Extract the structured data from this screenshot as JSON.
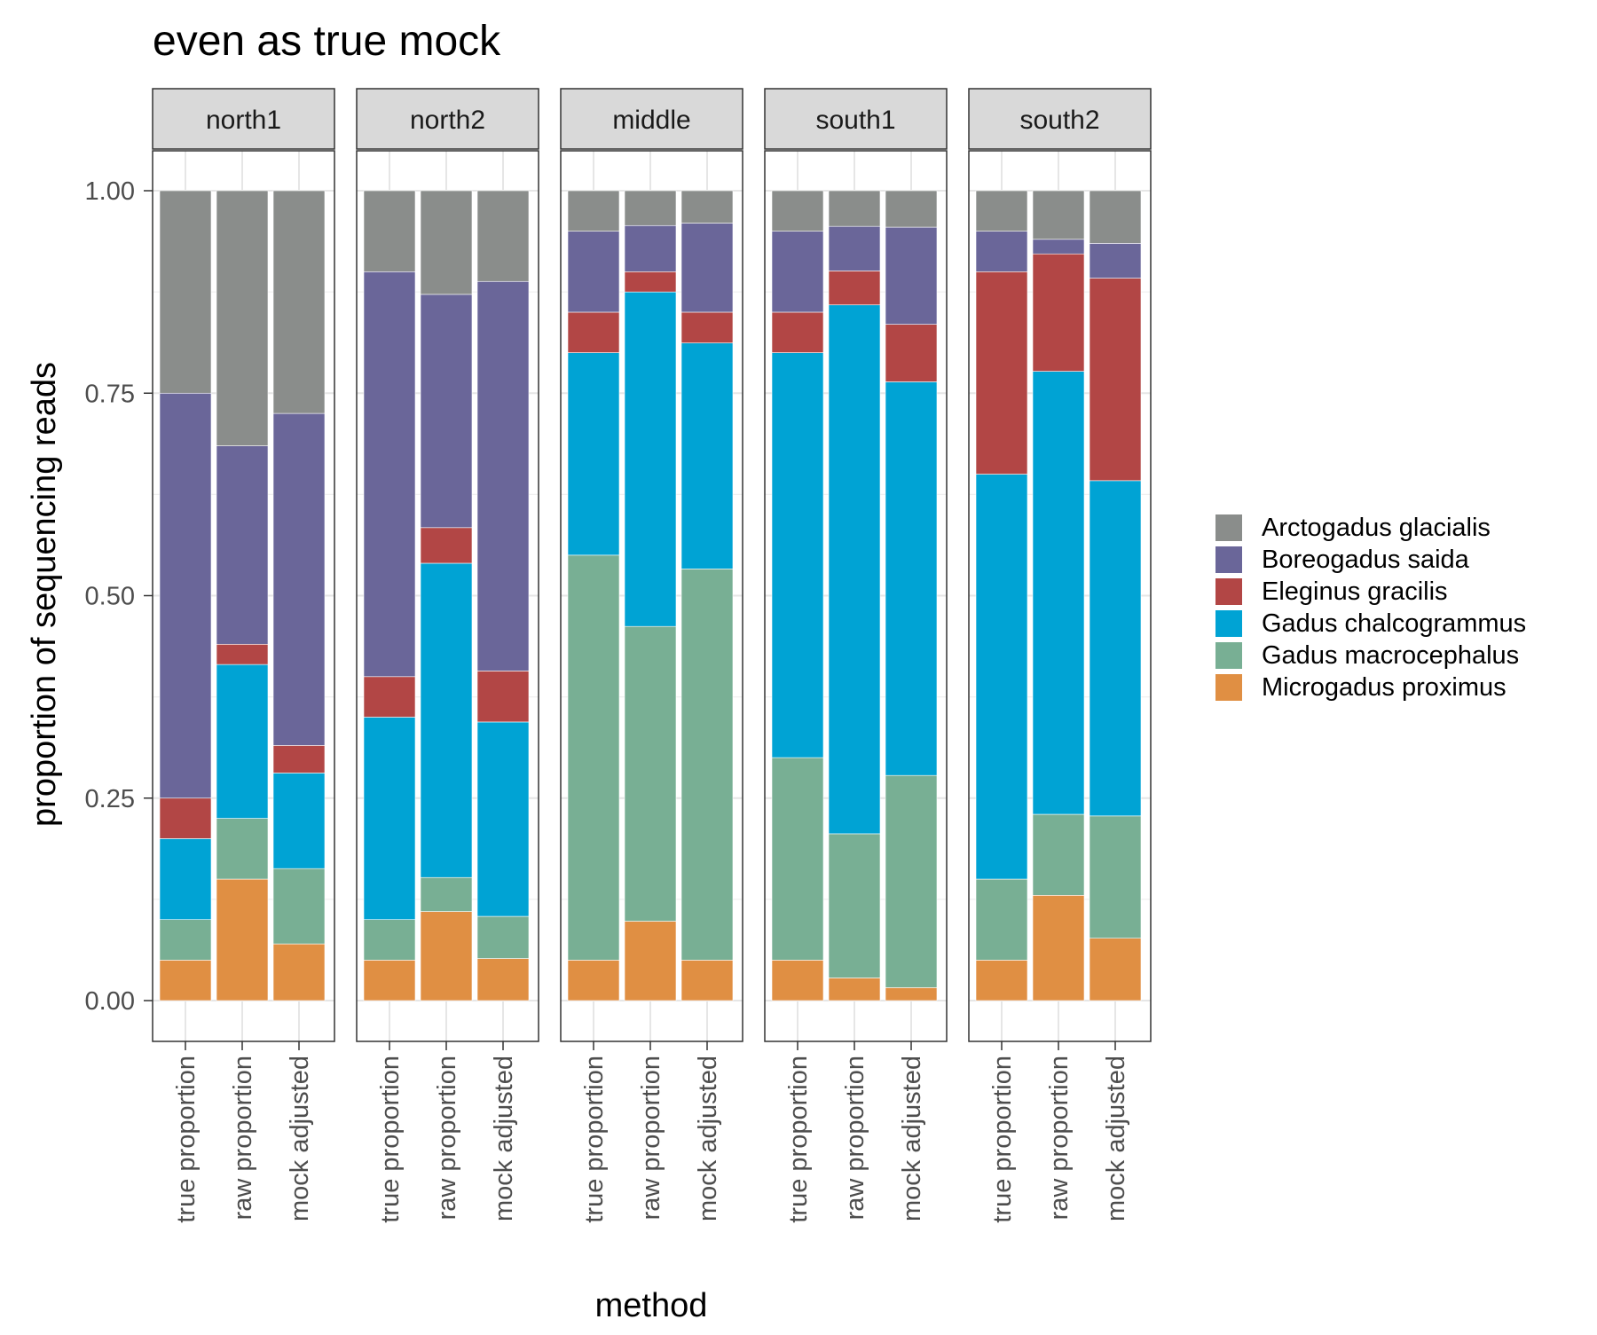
{
  "chart_data": {
    "type": "bar",
    "stacked": true,
    "faceted": true,
    "title": "even as true mock",
    "xlabel": "method",
    "ylabel": "proportion of sequencing reads",
    "ylim": [
      0,
      1
    ],
    "y_ticks": [
      "0.00",
      "0.25",
      "0.50",
      "0.75",
      "1.00"
    ],
    "categories": [
      "true proportion",
      "raw proportion",
      "mock adjusted"
    ],
    "legend_position": "right",
    "grid": true,
    "species": [
      {
        "name": "Arctogadus glacialis",
        "color": "#8a8d8b"
      },
      {
        "name": "Boreogadus saida",
        "color": "#6a6699"
      },
      {
        "name": "Eleginus gracilis",
        "color": "#b24645"
      },
      {
        "name": "Gadus chalcogrammus",
        "color": "#00a3d4"
      },
      {
        "name": "Gadus macrocephalus",
        "color": "#78af94"
      },
      {
        "name": "Microgadus proximus",
        "color": "#e08f43"
      }
    ],
    "stack_order_bottom_to_top": [
      "Microgadus proximus",
      "Gadus macrocephalus",
      "Gadus chalcogrammus",
      "Eleginus gracilis",
      "Boreogadus saida",
      "Arctogadus glacialis"
    ],
    "facets": [
      {
        "name": "north1",
        "bars": [
          {
            "method": "true proportion",
            "Microgadus proximus": 0.05,
            "Gadus macrocephalus": 0.05,
            "Gadus chalcogrammus": 0.1,
            "Eleginus gracilis": 0.05,
            "Boreogadus saida": 0.5,
            "Arctogadus glacialis": 0.25
          },
          {
            "method": "raw proportion",
            "Microgadus proximus": 0.15,
            "Gadus macrocephalus": 0.075,
            "Gadus chalcogrammus": 0.19,
            "Eleginus gracilis": 0.025,
            "Boreogadus saida": 0.245,
            "Arctogadus glacialis": 0.315
          },
          {
            "method": "mock adjusted",
            "Microgadus proximus": 0.07,
            "Gadus macrocephalus": 0.093,
            "Gadus chalcogrammus": 0.118,
            "Eleginus gracilis": 0.034,
            "Boreogadus saida": 0.41,
            "Arctogadus glacialis": 0.275
          }
        ]
      },
      {
        "name": "north2",
        "bars": [
          {
            "method": "true proportion",
            "Microgadus proximus": 0.05,
            "Gadus macrocephalus": 0.05,
            "Gadus chalcogrammus": 0.25,
            "Eleginus gracilis": 0.05,
            "Boreogadus saida": 0.5,
            "Arctogadus glacialis": 0.1
          },
          {
            "method": "raw proportion",
            "Microgadus proximus": 0.11,
            "Gadus macrocephalus": 0.042,
            "Gadus chalcogrammus": 0.388,
            "Eleginus gracilis": 0.044,
            "Boreogadus saida": 0.288,
            "Arctogadus glacialis": 0.128
          },
          {
            "method": "mock adjusted",
            "Microgadus proximus": 0.052,
            "Gadus macrocephalus": 0.052,
            "Gadus chalcogrammus": 0.24,
            "Eleginus gracilis": 0.063,
            "Boreogadus saida": 0.481,
            "Arctogadus glacialis": 0.112
          }
        ]
      },
      {
        "name": "middle",
        "bars": [
          {
            "method": "true proportion",
            "Microgadus proximus": 0.05,
            "Gadus macrocephalus": 0.5,
            "Gadus chalcogrammus": 0.25,
            "Eleginus gracilis": 0.05,
            "Boreogadus saida": 0.1,
            "Arctogadus glacialis": 0.05
          },
          {
            "method": "raw proportion",
            "Microgadus proximus": 0.098,
            "Gadus macrocephalus": 0.364,
            "Gadus chalcogrammus": 0.413,
            "Eleginus gracilis": 0.025,
            "Boreogadus saida": 0.057,
            "Arctogadus glacialis": 0.043
          },
          {
            "method": "mock adjusted",
            "Microgadus proximus": 0.05,
            "Gadus macrocephalus": 0.483,
            "Gadus chalcogrammus": 0.279,
            "Eleginus gracilis": 0.038,
            "Boreogadus saida": 0.11,
            "Arctogadus glacialis": 0.04
          }
        ]
      },
      {
        "name": "south1",
        "bars": [
          {
            "method": "true proportion",
            "Microgadus proximus": 0.05,
            "Gadus macrocephalus": 0.25,
            "Gadus chalcogrammus": 0.5,
            "Eleginus gracilis": 0.05,
            "Boreogadus saida": 0.1,
            "Arctogadus glacialis": 0.05
          },
          {
            "method": "raw proportion",
            "Microgadus proximus": 0.028,
            "Gadus macrocephalus": 0.178,
            "Gadus chalcogrammus": 0.653,
            "Eleginus gracilis": 0.042,
            "Boreogadus saida": 0.055,
            "Arctogadus glacialis": 0.044
          },
          {
            "method": "mock adjusted",
            "Microgadus proximus": 0.016,
            "Gadus macrocephalus": 0.262,
            "Gadus chalcogrammus": 0.486,
            "Eleginus gracilis": 0.071,
            "Boreogadus saida": 0.12,
            "Arctogadus glacialis": 0.045
          }
        ]
      },
      {
        "name": "south2",
        "bars": [
          {
            "method": "true proportion",
            "Microgadus proximus": 0.05,
            "Gadus macrocephalus": 0.1,
            "Gadus chalcogrammus": 0.5,
            "Eleginus gracilis": 0.25,
            "Boreogadus saida": 0.05,
            "Arctogadus glacialis": 0.05
          },
          {
            "method": "raw proportion",
            "Microgadus proximus": 0.13,
            "Gadus macrocephalus": 0.1,
            "Gadus chalcogrammus": 0.547,
            "Eleginus gracilis": 0.145,
            "Boreogadus saida": 0.018,
            "Arctogadus glacialis": 0.06
          },
          {
            "method": "mock adjusted",
            "Microgadus proximus": 0.077,
            "Gadus macrocephalus": 0.151,
            "Gadus chalcogrammus": 0.414,
            "Eleginus gracilis": 0.25,
            "Boreogadus saida": 0.043,
            "Arctogadus glacialis": 0.065
          }
        ]
      }
    ]
  }
}
